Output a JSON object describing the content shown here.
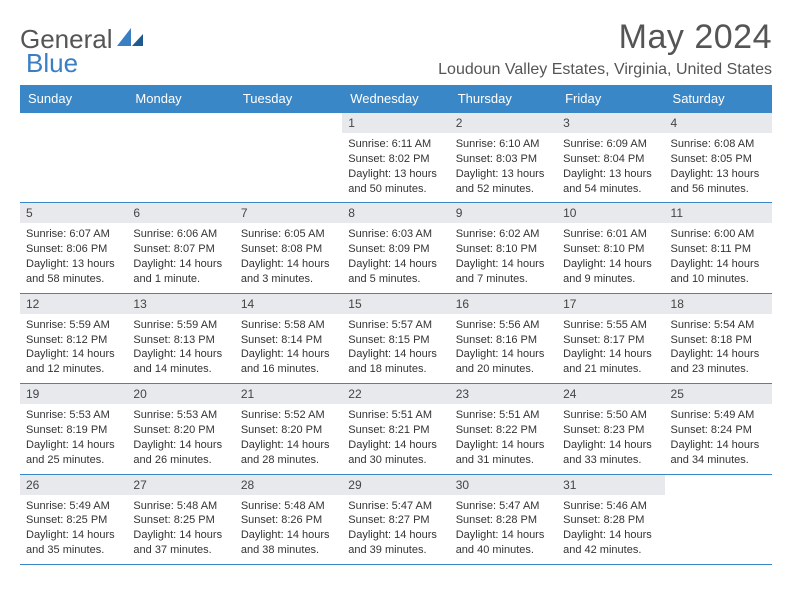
{
  "logo": {
    "word1": "General",
    "word2": "Blue"
  },
  "header": {
    "month_title": "May 2024",
    "location": "Loudoun Valley Estates, Virginia, United States"
  },
  "colors": {
    "header_bg": "#3a87c8",
    "header_text": "#ffffff",
    "daynum_bg": "#e7e9ec",
    "border": "#3a87c8",
    "logo_gray": "#555555",
    "logo_blue": "#3a7fc4",
    "text": "#333333",
    "page_bg": "#ffffff"
  },
  "weekdays": [
    "Sunday",
    "Monday",
    "Tuesday",
    "Wednesday",
    "Thursday",
    "Friday",
    "Saturday"
  ],
  "weeks": [
    [
      {
        "empty": true
      },
      {
        "empty": true
      },
      {
        "empty": true
      },
      {
        "day": "1",
        "sunrise": "Sunrise: 6:11 AM",
        "sunset": "Sunset: 8:02 PM",
        "daylight": "Daylight: 13 hours and 50 minutes."
      },
      {
        "day": "2",
        "sunrise": "Sunrise: 6:10 AM",
        "sunset": "Sunset: 8:03 PM",
        "daylight": "Daylight: 13 hours and 52 minutes."
      },
      {
        "day": "3",
        "sunrise": "Sunrise: 6:09 AM",
        "sunset": "Sunset: 8:04 PM",
        "daylight": "Daylight: 13 hours and 54 minutes."
      },
      {
        "day": "4",
        "sunrise": "Sunrise: 6:08 AM",
        "sunset": "Sunset: 8:05 PM",
        "daylight": "Daylight: 13 hours and 56 minutes."
      }
    ],
    [
      {
        "day": "5",
        "sunrise": "Sunrise: 6:07 AM",
        "sunset": "Sunset: 8:06 PM",
        "daylight": "Daylight: 13 hours and 58 minutes."
      },
      {
        "day": "6",
        "sunrise": "Sunrise: 6:06 AM",
        "sunset": "Sunset: 8:07 PM",
        "daylight": "Daylight: 14 hours and 1 minute."
      },
      {
        "day": "7",
        "sunrise": "Sunrise: 6:05 AM",
        "sunset": "Sunset: 8:08 PM",
        "daylight": "Daylight: 14 hours and 3 minutes."
      },
      {
        "day": "8",
        "sunrise": "Sunrise: 6:03 AM",
        "sunset": "Sunset: 8:09 PM",
        "daylight": "Daylight: 14 hours and 5 minutes."
      },
      {
        "day": "9",
        "sunrise": "Sunrise: 6:02 AM",
        "sunset": "Sunset: 8:10 PM",
        "daylight": "Daylight: 14 hours and 7 minutes."
      },
      {
        "day": "10",
        "sunrise": "Sunrise: 6:01 AM",
        "sunset": "Sunset: 8:10 PM",
        "daylight": "Daylight: 14 hours and 9 minutes."
      },
      {
        "day": "11",
        "sunrise": "Sunrise: 6:00 AM",
        "sunset": "Sunset: 8:11 PM",
        "daylight": "Daylight: 14 hours and 10 minutes."
      }
    ],
    [
      {
        "day": "12",
        "sunrise": "Sunrise: 5:59 AM",
        "sunset": "Sunset: 8:12 PM",
        "daylight": "Daylight: 14 hours and 12 minutes."
      },
      {
        "day": "13",
        "sunrise": "Sunrise: 5:59 AM",
        "sunset": "Sunset: 8:13 PM",
        "daylight": "Daylight: 14 hours and 14 minutes."
      },
      {
        "day": "14",
        "sunrise": "Sunrise: 5:58 AM",
        "sunset": "Sunset: 8:14 PM",
        "daylight": "Daylight: 14 hours and 16 minutes."
      },
      {
        "day": "15",
        "sunrise": "Sunrise: 5:57 AM",
        "sunset": "Sunset: 8:15 PM",
        "daylight": "Daylight: 14 hours and 18 minutes."
      },
      {
        "day": "16",
        "sunrise": "Sunrise: 5:56 AM",
        "sunset": "Sunset: 8:16 PM",
        "daylight": "Daylight: 14 hours and 20 minutes."
      },
      {
        "day": "17",
        "sunrise": "Sunrise: 5:55 AM",
        "sunset": "Sunset: 8:17 PM",
        "daylight": "Daylight: 14 hours and 21 minutes."
      },
      {
        "day": "18",
        "sunrise": "Sunrise: 5:54 AM",
        "sunset": "Sunset: 8:18 PM",
        "daylight": "Daylight: 14 hours and 23 minutes."
      }
    ],
    [
      {
        "day": "19",
        "sunrise": "Sunrise: 5:53 AM",
        "sunset": "Sunset: 8:19 PM",
        "daylight": "Daylight: 14 hours and 25 minutes."
      },
      {
        "day": "20",
        "sunrise": "Sunrise: 5:53 AM",
        "sunset": "Sunset: 8:20 PM",
        "daylight": "Daylight: 14 hours and 26 minutes."
      },
      {
        "day": "21",
        "sunrise": "Sunrise: 5:52 AM",
        "sunset": "Sunset: 8:20 PM",
        "daylight": "Daylight: 14 hours and 28 minutes."
      },
      {
        "day": "22",
        "sunrise": "Sunrise: 5:51 AM",
        "sunset": "Sunset: 8:21 PM",
        "daylight": "Daylight: 14 hours and 30 minutes."
      },
      {
        "day": "23",
        "sunrise": "Sunrise: 5:51 AM",
        "sunset": "Sunset: 8:22 PM",
        "daylight": "Daylight: 14 hours and 31 minutes."
      },
      {
        "day": "24",
        "sunrise": "Sunrise: 5:50 AM",
        "sunset": "Sunset: 8:23 PM",
        "daylight": "Daylight: 14 hours and 33 minutes."
      },
      {
        "day": "25",
        "sunrise": "Sunrise: 5:49 AM",
        "sunset": "Sunset: 8:24 PM",
        "daylight": "Daylight: 14 hours and 34 minutes."
      }
    ],
    [
      {
        "day": "26",
        "sunrise": "Sunrise: 5:49 AM",
        "sunset": "Sunset: 8:25 PM",
        "daylight": "Daylight: 14 hours and 35 minutes."
      },
      {
        "day": "27",
        "sunrise": "Sunrise: 5:48 AM",
        "sunset": "Sunset: 8:25 PM",
        "daylight": "Daylight: 14 hours and 37 minutes."
      },
      {
        "day": "28",
        "sunrise": "Sunrise: 5:48 AM",
        "sunset": "Sunset: 8:26 PM",
        "daylight": "Daylight: 14 hours and 38 minutes."
      },
      {
        "day": "29",
        "sunrise": "Sunrise: 5:47 AM",
        "sunset": "Sunset: 8:27 PM",
        "daylight": "Daylight: 14 hours and 39 minutes."
      },
      {
        "day": "30",
        "sunrise": "Sunrise: 5:47 AM",
        "sunset": "Sunset: 8:28 PM",
        "daylight": "Daylight: 14 hours and 40 minutes."
      },
      {
        "day": "31",
        "sunrise": "Sunrise: 5:46 AM",
        "sunset": "Sunset: 8:28 PM",
        "daylight": "Daylight: 14 hours and 42 minutes."
      },
      {
        "empty": true
      }
    ]
  ]
}
